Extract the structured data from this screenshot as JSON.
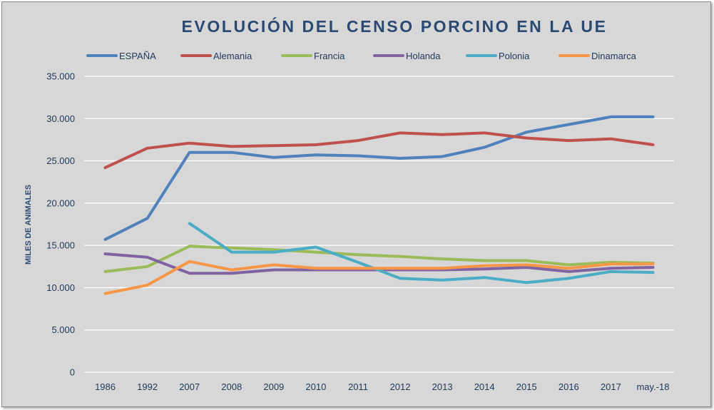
{
  "chart_data": {
    "type": "line",
    "title": "EVOLUCIÓN DEL CENSO PORCINO EN LA UE",
    "xlabel": "",
    "ylabel": "MILES DE ANIMALES",
    "categories": [
      "1986",
      "1992",
      "2007",
      "2008",
      "2009",
      "2010",
      "2011",
      "2012",
      "2013",
      "2014",
      "2015",
      "2016",
      "2017",
      "may.-18"
    ],
    "ylim": [
      0,
      35000
    ],
    "yticks": [
      0,
      5000,
      10000,
      15000,
      20000,
      25000,
      30000,
      35000
    ],
    "ytick_labels": [
      "0",
      "5.000",
      "10.000",
      "15.000",
      "20.000",
      "25.000",
      "30.000",
      "35.000"
    ],
    "grid": true,
    "legend": "top",
    "series": [
      {
        "name": "ESPAÑA",
        "color": "#4f81bd",
        "values": [
          15700,
          18200,
          26000,
          26000,
          25400,
          25700,
          25600,
          25300,
          25500,
          26600,
          28400,
          29300,
          30200,
          30200
        ]
      },
      {
        "name": "Alemania",
        "color": "#c0504d",
        "values": [
          24200,
          26500,
          27100,
          26700,
          26800,
          26900,
          27400,
          28300,
          28100,
          28300,
          27700,
          27400,
          27600,
          26900
        ]
      },
      {
        "name": "Francia",
        "color": "#9bbb59",
        "values": [
          11900,
          12500,
          14900,
          14700,
          14500,
          14200,
          13900,
          13700,
          13400,
          13200,
          13200,
          12700,
          13000,
          12900
        ]
      },
      {
        "name": "Holanda",
        "color": "#8064a2",
        "values": [
          14000,
          13600,
          11700,
          11700,
          12100,
          12100,
          12100,
          12100,
          12100,
          12200,
          12400,
          11900,
          12300,
          12400
        ]
      },
      {
        "name": "Polonia",
        "color": "#4bacc6",
        "values": [
          null,
          null,
          17600,
          14200,
          14200,
          14800,
          13000,
          11100,
          10900,
          11200,
          10600,
          11100,
          11900,
          11800
        ]
      },
      {
        "name": "Dinamarca",
        "color": "#f79646",
        "values": [
          9300,
          10300,
          13100,
          12100,
          12700,
          12300,
          12300,
          12300,
          12300,
          12600,
          12700,
          12300,
          12800,
          12800
        ]
      }
    ]
  }
}
